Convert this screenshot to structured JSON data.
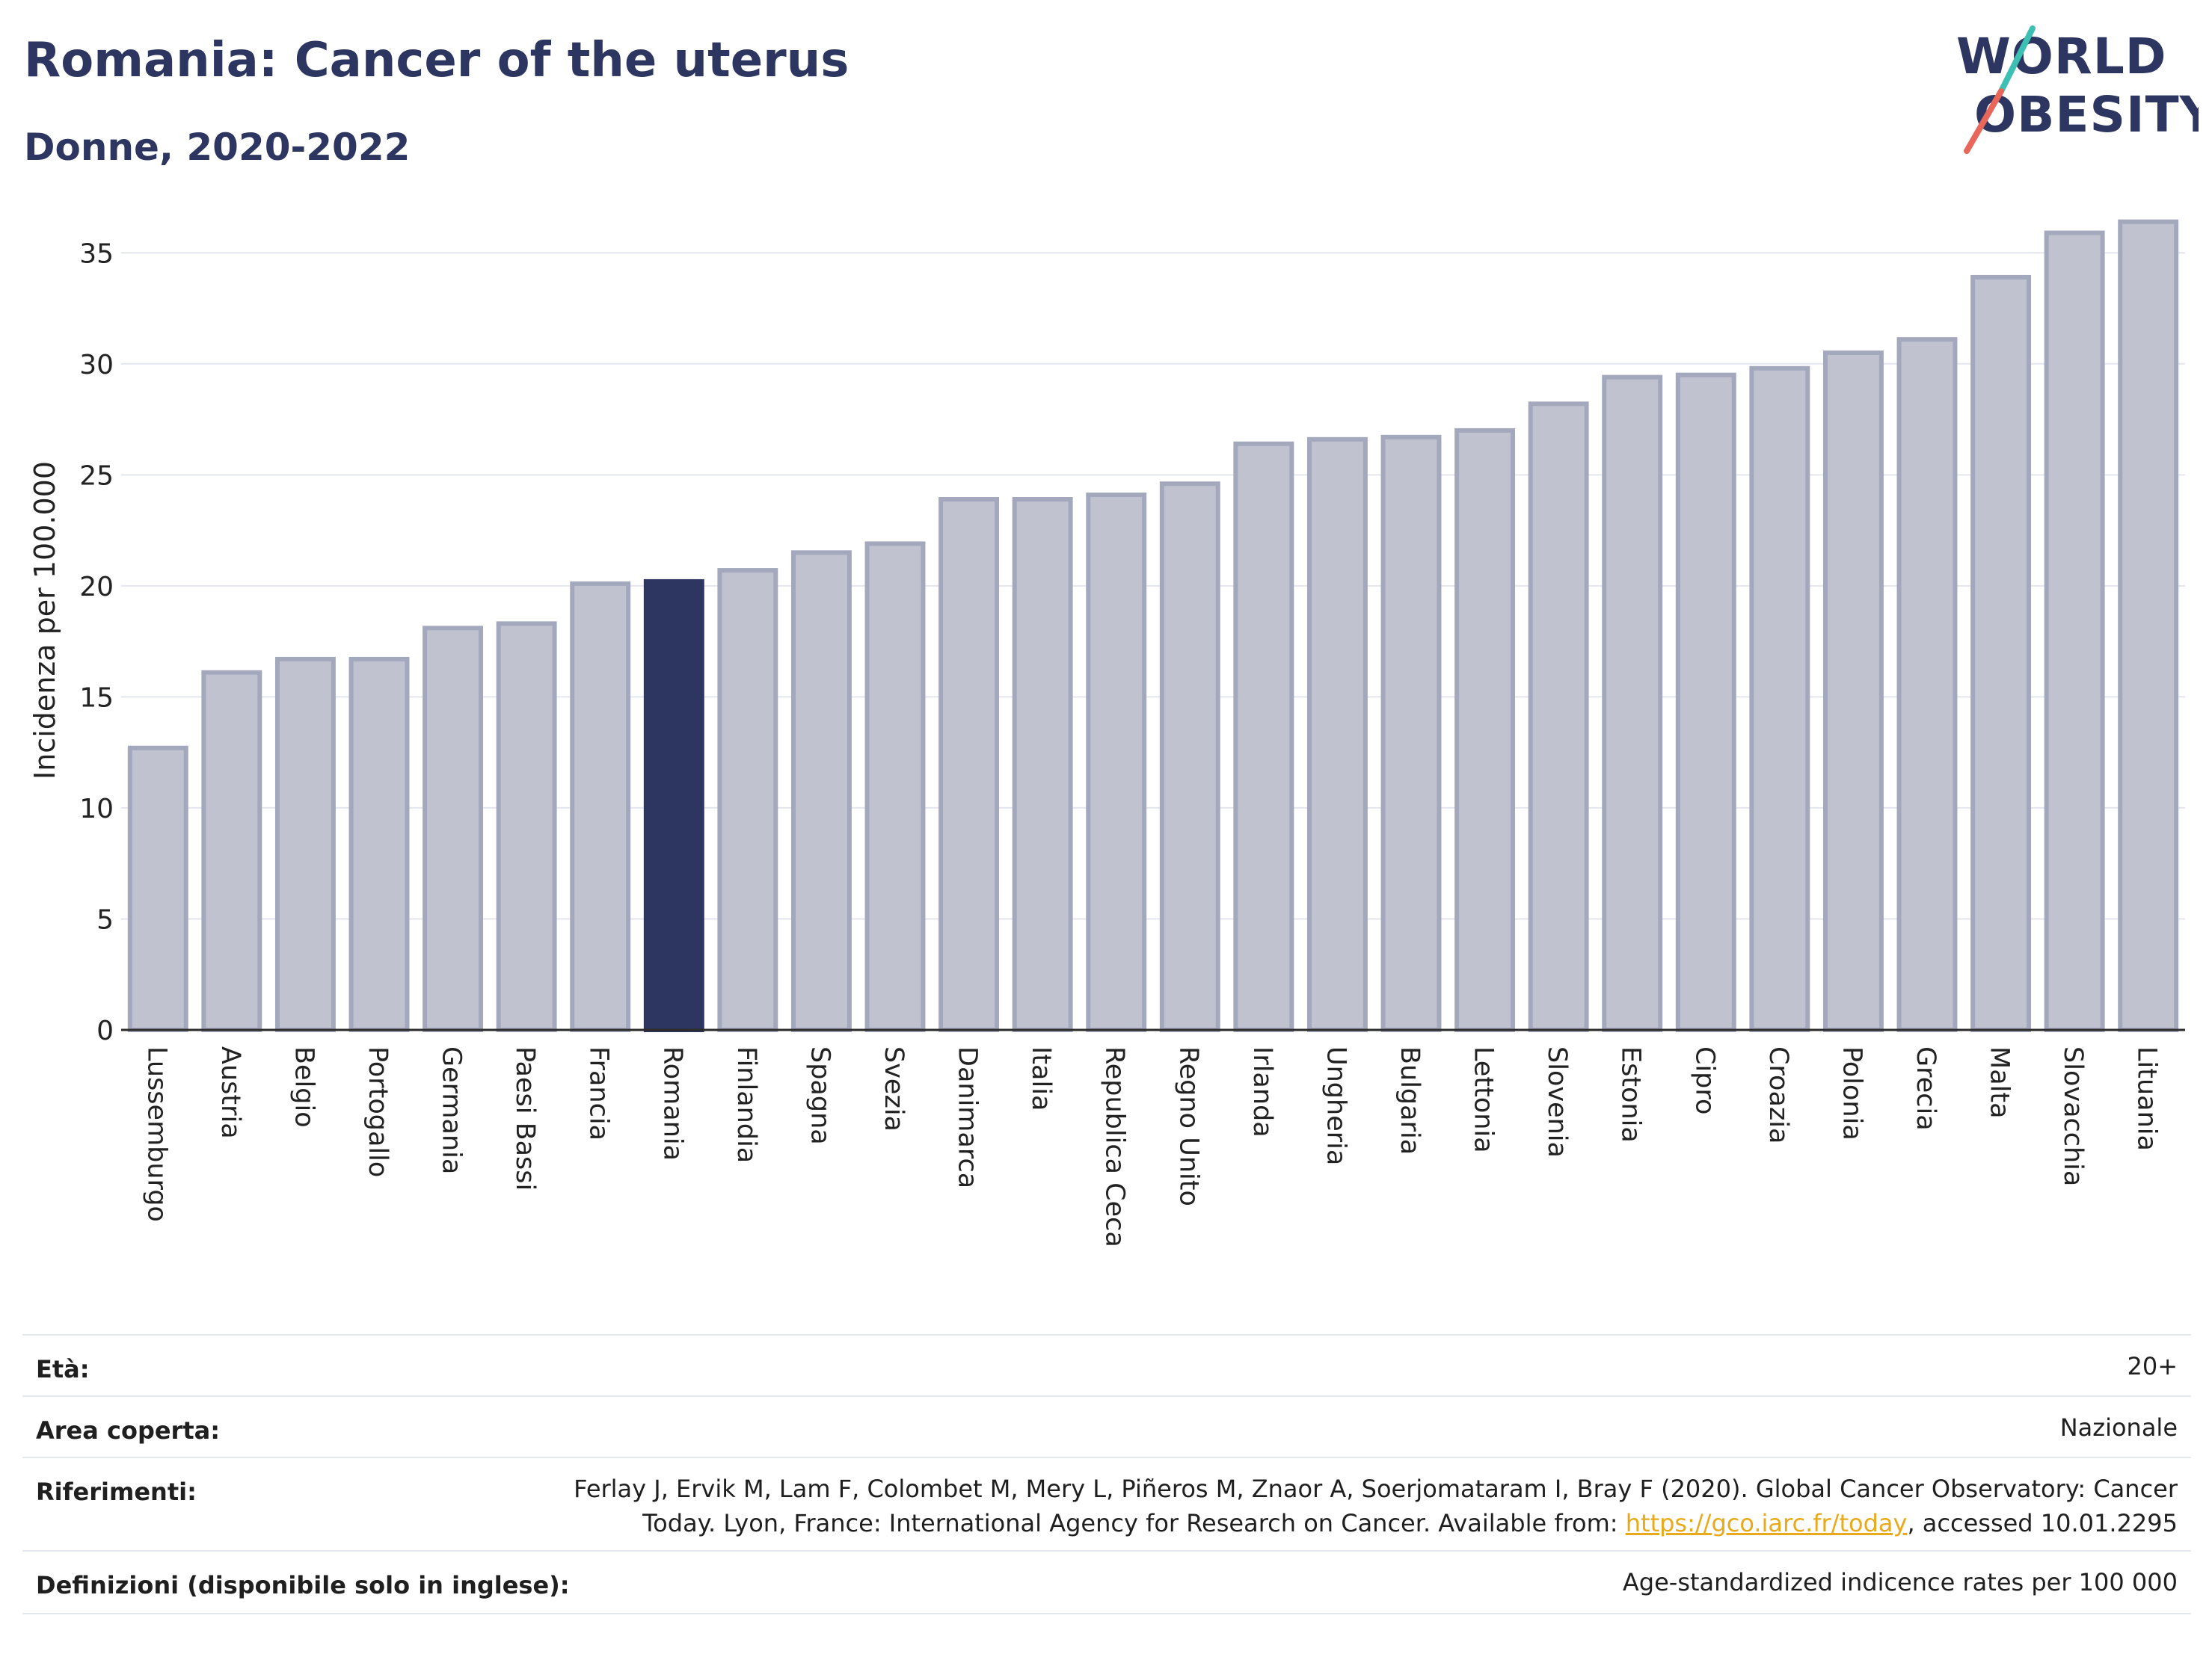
{
  "header": {
    "title": "Romania: Cancer of the uterus",
    "subtitle": "Donne, 2020-2022"
  },
  "logo": {
    "line1": "WORLD",
    "line2": "OBESITY",
    "colors": {
      "text": "#2c3660",
      "slash_top": "#3cc0b4",
      "slash_bottom": "#e8665a"
    }
  },
  "chart_data": {
    "type": "bar",
    "ylabel": "Incidenza per 100.000",
    "ylim": [
      0,
      37.5
    ],
    "yticks": [
      0,
      5,
      10,
      15,
      20,
      25,
      30,
      35
    ],
    "grid": true,
    "highlight": "Romania",
    "colors": {
      "bar": "#c0c3cf",
      "bar_border": "#a3a8bd",
      "highlight": "#2c3660",
      "grid": "#e4e6ee"
    },
    "categories": [
      "Lussemburgo",
      "Austria",
      "Belgio",
      "Portogallo",
      "Germania",
      "Paesi Bassi",
      "Francia",
      "Romania",
      "Finlandia",
      "Spagna",
      "Svezia",
      "Danimarca",
      "Italia",
      "Republica Ceca",
      "Regno Unito",
      "Irlanda",
      "Ungheria",
      "Bulgaria",
      "Lettonia",
      "Slovenia",
      "Estonia",
      "Cipro",
      "Croazia",
      "Polonia",
      "Grecia",
      "Malta",
      "Slovacchia",
      "Lituania"
    ],
    "values": [
      12.7,
      16.1,
      16.7,
      16.7,
      18.1,
      18.3,
      20.1,
      20.2,
      20.7,
      21.5,
      21.9,
      23.9,
      23.9,
      24.1,
      24.6,
      26.4,
      26.6,
      26.7,
      27.0,
      28.2,
      29.4,
      29.5,
      29.8,
      30.5,
      31.1,
      33.9,
      35.9,
      36.4
    ]
  },
  "info": {
    "rows": [
      {
        "label": "Età:",
        "value": "20+"
      },
      {
        "label": "Area coperta:",
        "value": "Nazionale"
      },
      {
        "label": "Riferimenti:",
        "value_line1": "Ferlay J, Ervik M, Lam F, Colombet M, Mery L, Piñeros M, Znaor A, Soerjomataram I, Bray F (2020). Global Cancer Observatory: Cancer",
        "value_line2_pre": "Today. Lyon, France: International Agency for Research on Cancer. Available from: ",
        "link": "https://gco.iarc.fr/today",
        "value_line2_post": ", accessed 10.01.2295"
      },
      {
        "label": "Definizioni (disponibile solo in inglese):",
        "value": "Age-standardized indicence rates per 100 000"
      }
    ]
  }
}
